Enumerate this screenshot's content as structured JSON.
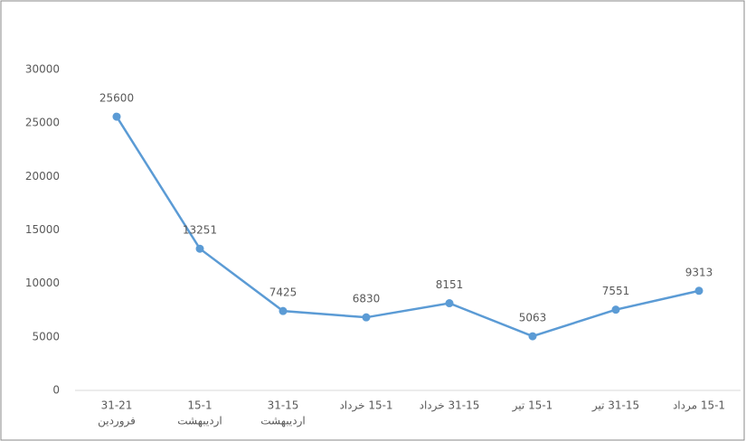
{
  "chart_data": {
    "type": "line",
    "categories": [
      [
        "31-21",
        "فروردین"
      ],
      [
        "15-1",
        "اردیبهشت"
      ],
      [
        "31-15",
        "اردیبهشت"
      ],
      [
        "15-1 خرداد"
      ],
      [
        "31-15 خرداد"
      ],
      [
        "15-1 تیر"
      ],
      [
        "31-15 تیر"
      ],
      [
        "15-1 مرداد"
      ]
    ],
    "series": [
      {
        "color": "#5b9bd5",
        "values": [
          25600,
          13251,
          7425,
          6830,
          8151,
          5063,
          7551,
          9313
        ]
      }
    ],
    "ylim": [
      0,
      30000
    ],
    "yticks": [
      0,
      5000,
      10000,
      15000,
      20000,
      25000,
      30000
    ]
  }
}
